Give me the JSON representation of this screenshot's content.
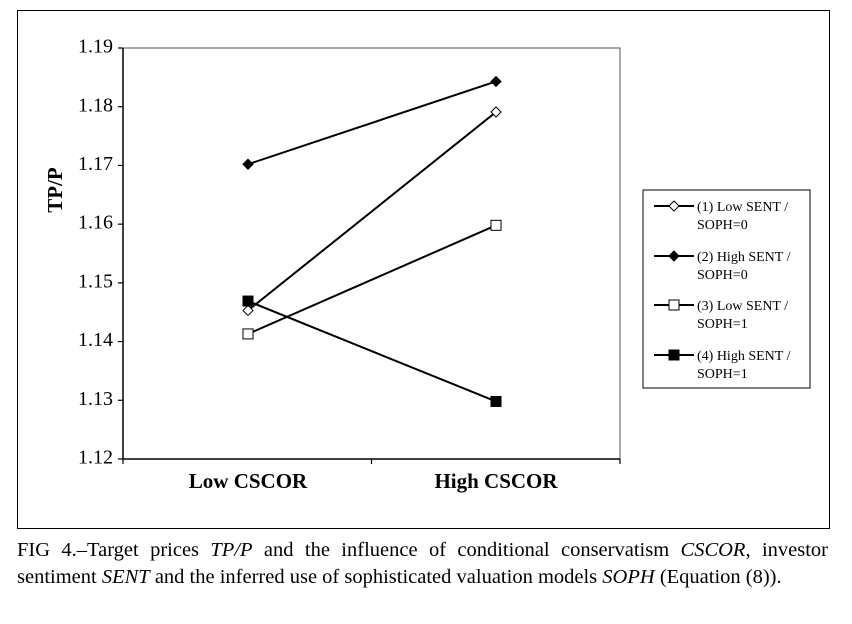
{
  "chart_data": {
    "type": "line",
    "title": "",
    "xlabel": "",
    "ylabel": "TP/P",
    "categories": [
      "Low CSCOR",
      "High CSCOR"
    ],
    "ylim": [
      1.12,
      1.19
    ],
    "yticks": [
      "1.12",
      "1.13",
      "1.14",
      "1.15",
      "1.16",
      "1.17",
      "1.18",
      "1.19"
    ],
    "grid": false,
    "legend_position": "right",
    "series": [
      {
        "name": "(1) Low SENT / SOPH=0",
        "name_lines": [
          "(1) Low SENT /",
          "SOPH=0"
        ],
        "marker": "diamond-open",
        "values": [
          1.1453,
          1.1791
        ]
      },
      {
        "name": "(2) High SENT / SOPH=0",
        "name_lines": [
          "(2) High SENT /",
          "SOPH=0"
        ],
        "marker": "diamond-filled",
        "values": [
          1.1702,
          1.1843
        ]
      },
      {
        "name": "(3) Low SENT / SOPH=1",
        "name_lines": [
          "(3) Low SENT /",
          "SOPH=1"
        ],
        "marker": "square-open",
        "values": [
          1.1413,
          1.1598
        ]
      },
      {
        "name": "(4) High SENT / SOPH=1",
        "name_lines": [
          "(4) High SENT /",
          "SOPH=1"
        ],
        "marker": "square-filled",
        "values": [
          1.1469,
          1.1298
        ]
      }
    ]
  },
  "caption": {
    "prefix": "FIG 4.–Target prices ",
    "tp": "TP/P",
    "mid1": " and the influence of conditional conservatism ",
    "cscor": "CSCOR",
    "mid2": ", investor sentiment ",
    "sent": "SENT",
    "mid3": " and the inferred use of sophisticated valuation models ",
    "soph": "SOPH",
    "suffix": " (Equation (8))."
  }
}
